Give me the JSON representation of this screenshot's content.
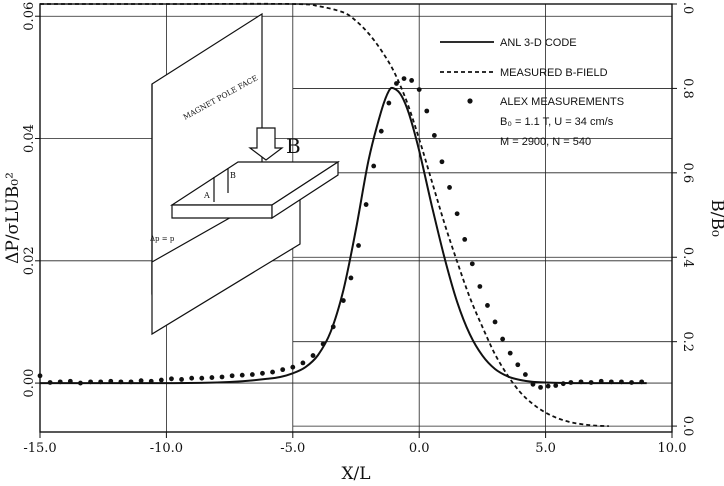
{
  "chart_data": {
    "type": "line",
    "title": "",
    "xlabel": "X/L",
    "ylabel_left": "ΔP/σLUB₀²",
    "ylabel_right": "B/B₀",
    "xlim": [
      -15,
      10
    ],
    "ylim_left": [
      -0.008,
      0.062
    ],
    "ylim_right": [
      -0.014,
      1.0
    ],
    "x_ticks": [
      -15,
      -10,
      -5,
      0,
      5,
      10
    ],
    "x_tick_labels": [
      "-15.0",
      "-10.0",
      "-5.0",
      "0.0",
      "5.0",
      "10.0"
    ],
    "y_left_ticks": [
      0,
      0.02,
      0.04,
      0.06
    ],
    "y_left_tick_labels": [
      "0.00",
      "0.02",
      "0.04",
      "0.06"
    ],
    "y_right_ticks": [
      0,
      0.2,
      0.4,
      0.6,
      0.8,
      1.0
    ],
    "y_right_tick_labels": [
      "0.0",
      "0.2",
      "0.4",
      "0.6",
      "0.8",
      "1.0"
    ],
    "legend": {
      "placement": "top-right",
      "entries": [
        "ANL 3-D CODE",
        "MEASURED B-FIELD",
        "ALEX MEASUREMENTS"
      ],
      "notes": [
        "B₀ = 1.1 T, U = 34 cm/s",
        "M = 2900, N = 540"
      ]
    },
    "series": [
      {
        "name": "ANL 3-D CODE",
        "axis": "left",
        "style": "solid",
        "x": [
          -15,
          -10,
          -8,
          -7,
          -6,
          -5.5,
          -5,
          -4.5,
          -4,
          -3.5,
          -3,
          -2.5,
          -2,
          -1.5,
          -1.2,
          -1,
          -0.7,
          -0.4,
          0,
          0.5,
          1,
          1.5,
          2,
          2.5,
          3,
          3.5,
          4,
          4.5,
          5,
          6,
          7,
          8,
          9
        ],
        "y": [
          0,
          0,
          0.0001,
          0.0003,
          0.0007,
          0.001,
          0.0016,
          0.0026,
          0.0046,
          0.0084,
          0.0152,
          0.0252,
          0.0365,
          0.0445,
          0.0478,
          0.0482,
          0.047,
          0.044,
          0.038,
          0.029,
          0.0205,
          0.0133,
          0.008,
          0.0045,
          0.0023,
          0.0011,
          0.0005,
          0.0002,
          0.0001,
          0,
          0,
          0,
          0
        ]
      },
      {
        "name": "MEASURED B-FIELD",
        "axis": "right",
        "style": "dashed",
        "x": [
          -15,
          -10,
          -5,
          -4,
          -3,
          -2.5,
          -2,
          -1.5,
          -1,
          -0.5,
          0,
          0.5,
          1,
          1.5,
          2,
          2.5,
          3,
          3.5,
          4,
          4.5,
          5,
          5.5,
          6,
          6.5,
          7,
          7.5
        ],
        "y": [
          1.0,
          1.0,
          1.0,
          0.995,
          0.98,
          0.96,
          0.93,
          0.89,
          0.84,
          0.77,
          0.68,
          0.58,
          0.48,
          0.39,
          0.305,
          0.235,
          0.17,
          0.12,
          0.08,
          0.052,
          0.032,
          0.018,
          0.009,
          0.004,
          0.001,
          0
        ]
      },
      {
        "name": "ALEX MEASUREMENTS",
        "axis": "left",
        "style": "points",
        "x": [
          -15,
          -14.6,
          -14.2,
          -13.8,
          -13.4,
          -13,
          -12.6,
          -12.2,
          -11.8,
          -11.4,
          -11,
          -10.6,
          -10.2,
          -9.8,
          -9.4,
          -9,
          -8.6,
          -8.2,
          -7.8,
          -7.4,
          -7,
          -6.6,
          -6.2,
          -5.8,
          -5.4,
          -5,
          -4.6,
          -4.2,
          -3.8,
          -3.4,
          -3,
          -2.7,
          -2.4,
          -2.1,
          -1.8,
          -1.5,
          -1.2,
          -0.9,
          -0.6,
          -0.3,
          0,
          0.3,
          0.6,
          0.9,
          1.2,
          1.5,
          1.8,
          2.1,
          2.4,
          2.7,
          3,
          3.3,
          3.6,
          3.9,
          4.2,
          4.5,
          4.8,
          5.1,
          5.4,
          5.7,
          6,
          6.4,
          6.8,
          7.2,
          7.6,
          8,
          8.4,
          8.8
        ],
        "y": [
          0.0012,
          0.0001,
          0.0002,
          0.0003,
          0,
          0.0002,
          0.0002,
          0.0003,
          0.0002,
          0.0002,
          0.0004,
          0.0003,
          0.0005,
          0.0007,
          0.0006,
          0.0008,
          0.0008,
          0.0009,
          0.001,
          0.0012,
          0.0013,
          0.0014,
          0.0016,
          0.0018,
          0.0022,
          0.0026,
          0.0033,
          0.0045,
          0.0064,
          0.0092,
          0.0135,
          0.0172,
          0.0225,
          0.0292,
          0.0355,
          0.0412,
          0.0458,
          0.049,
          0.0498,
          0.0495,
          0.048,
          0.0445,
          0.0405,
          0.0362,
          0.032,
          0.0277,
          0.0235,
          0.0195,
          0.0158,
          0.0127,
          0.01,
          0.0072,
          0.0049,
          0.003,
          0.0014,
          -0.0002,
          -0.0007,
          -0.0005,
          -0.0004,
          -0.0001,
          0.0001,
          0.0002,
          0.0001,
          0.0003,
          0.0002,
          0.0002,
          0.0001,
          0.0002
        ]
      }
    ]
  },
  "inset": {
    "pole_face_label": "MAGNET POLE FACE",
    "field_label": "B",
    "pressure_label": "Δp = p",
    "a_label": "A",
    "b_label": "B",
    "sub_a": "A",
    "sub_b": "B"
  }
}
